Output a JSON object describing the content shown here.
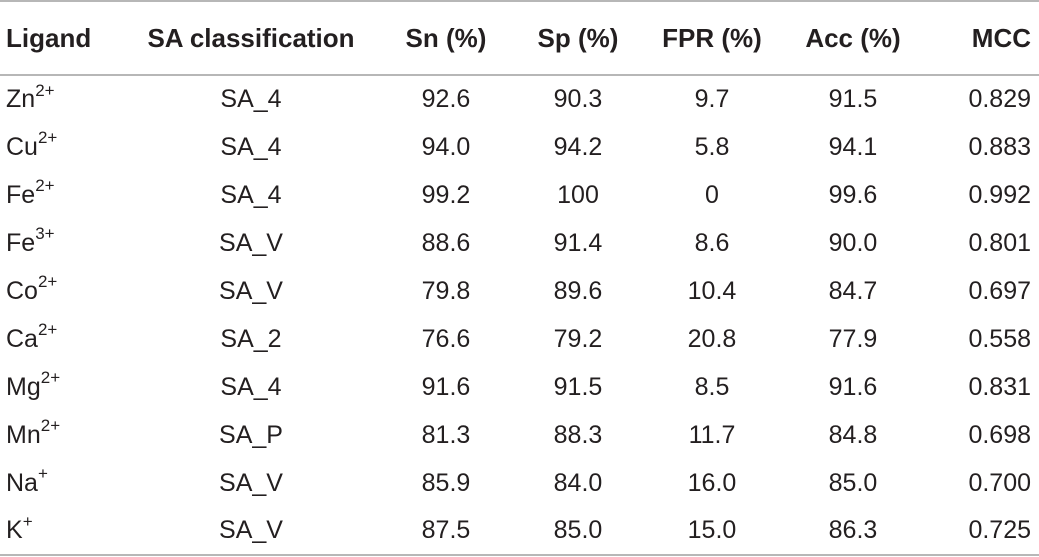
{
  "table": {
    "headers": [
      "Ligand",
      "SA classification",
      "Sn (%)",
      "Sp (%)",
      "FPR (%)",
      "Acc (%)",
      "MCC"
    ],
    "rows": [
      {
        "ligand_base": "Zn",
        "ligand_charge": "2+",
        "sa": "SA_4",
        "sn": "92.6",
        "sp": "90.3",
        "fpr": "9.7",
        "acc": "91.5",
        "mcc": "0.829"
      },
      {
        "ligand_base": "Cu",
        "ligand_charge": "2+",
        "sa": "SA_4",
        "sn": "94.0",
        "sp": "94.2",
        "fpr": "5.8",
        "acc": "94.1",
        "mcc": "0.883"
      },
      {
        "ligand_base": "Fe",
        "ligand_charge": "2+",
        "sa": "SA_4",
        "sn": "99.2",
        "sp": "100",
        "fpr": "0",
        "acc": "99.6",
        "mcc": "0.992"
      },
      {
        "ligand_base": "Fe",
        "ligand_charge": "3+",
        "sa": "SA_V",
        "sn": "88.6",
        "sp": "91.4",
        "fpr": "8.6",
        "acc": "90.0",
        "mcc": "0.801"
      },
      {
        "ligand_base": "Co",
        "ligand_charge": "2+",
        "sa": "SA_V",
        "sn": "79.8",
        "sp": "89.6",
        "fpr": "10.4",
        "acc": "84.7",
        "mcc": "0.697"
      },
      {
        "ligand_base": "Ca",
        "ligand_charge": "2+",
        "sa": "SA_2",
        "sn": "76.6",
        "sp": "79.2",
        "fpr": "20.8",
        "acc": "77.9",
        "mcc": "0.558"
      },
      {
        "ligand_base": "Mg",
        "ligand_charge": "2+",
        "sa": "SA_4",
        "sn": "91.6",
        "sp": "91.5",
        "fpr": "8.5",
        "acc": "91.6",
        "mcc": "0.831"
      },
      {
        "ligand_base": "Mn",
        "ligand_charge": "2+",
        "sa": "SA_P",
        "sn": "81.3",
        "sp": "88.3",
        "fpr": "11.7",
        "acc": "84.8",
        "mcc": "0.698"
      },
      {
        "ligand_base": "Na",
        "ligand_charge": "+",
        "sa": "SA_V",
        "sn": "85.9",
        "sp": "84.0",
        "fpr": "16.0",
        "acc": "85.0",
        "mcc": "0.700"
      },
      {
        "ligand_base": "K",
        "ligand_charge": "+",
        "sa": "SA_V",
        "sn": "87.5",
        "sp": "85.0",
        "fpr": "15.0",
        "acc": "86.3",
        "mcc": "0.725"
      }
    ]
  }
}
